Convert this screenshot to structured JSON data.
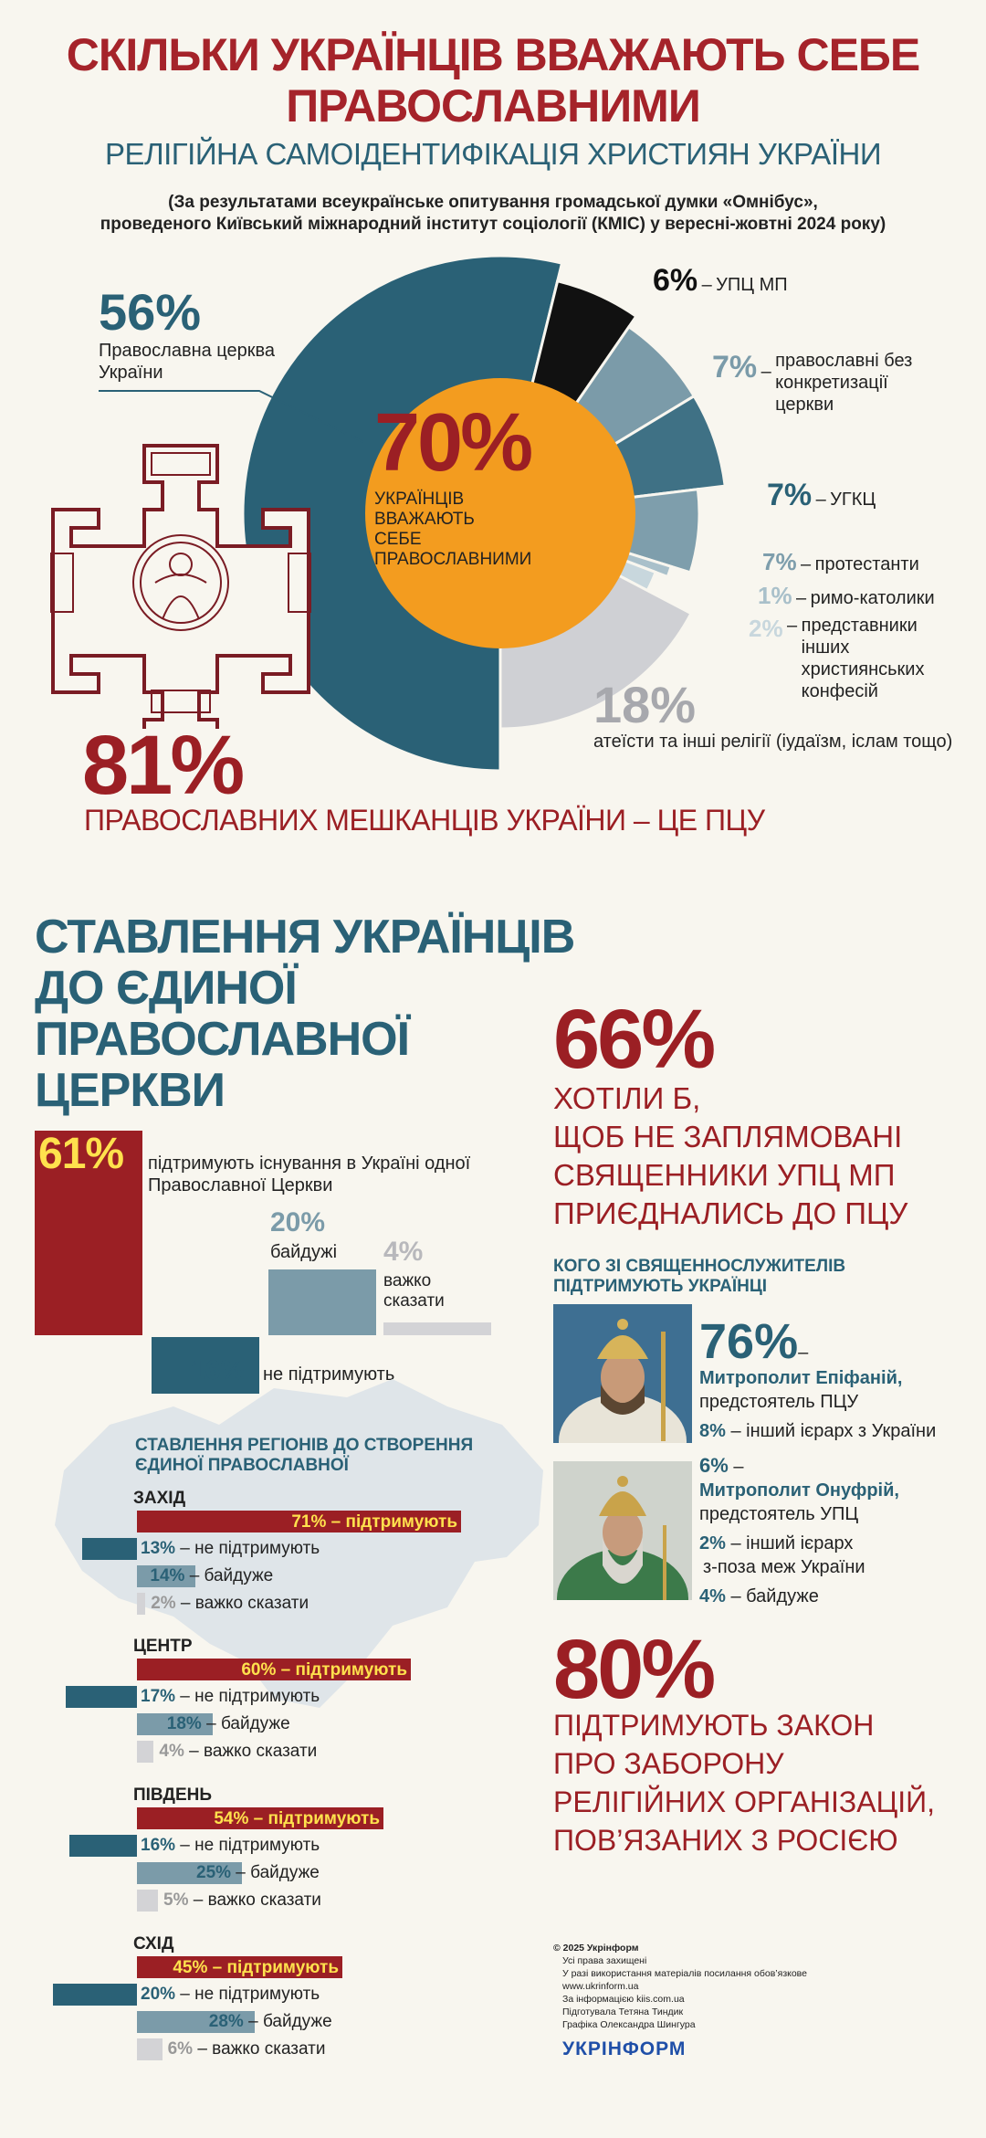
{
  "header": {
    "title_line1": "СКІЛЬКИ УКРАЇНЦІВ ВВАЖАЮТЬ СЕБЕ",
    "title_line2": "ПРАВОСЛАВНИМИ",
    "subtitle": "РЕЛІГІЙНА САМОІДЕНТИФІКАЦІЯ ХРИСТИЯН УКРАЇНИ",
    "note_line1": "(За результатами всеукраїнське опитування громадської думки «Омнібус»,",
    "note_line2": "проведеного Київський міжнародний інститут соціології (КМІС) у вересні-жовтні 2024 року)"
  },
  "colors": {
    "teal": "#2a6176",
    "red": "#9b1f24",
    "orange": "#f39c1f",
    "black": "#111111",
    "gray": "#cfd0d4"
  },
  "chart_data": [
    {
      "type": "pie",
      "center_pct": "70%",
      "center_text": "УКРАЇНЦІВ ВВАЖАЮТЬ СЕБЕ ПРАВОСЛАВНИМИ",
      "slices": [
        {
          "label": "Православна церква України",
          "value": 56,
          "pct": "56%",
          "color": "#2a6176"
        },
        {
          "label": "УПЦ МП",
          "value": 6,
          "pct": "6%",
          "color": "#111111"
        },
        {
          "label": "православні без конкретизації церкви",
          "value": 7,
          "pct": "7%",
          "color": "#7b9ba9"
        },
        {
          "label": "УГКЦ",
          "value": 7,
          "pct": "7%",
          "color": "#3f7185"
        },
        {
          "label": "протестанти",
          "value": 7,
          "pct": "7%",
          "color": "#7e9eac"
        },
        {
          "label": "римо-католики",
          "value": 1,
          "pct": "1%",
          "color": "#a9c0ca"
        },
        {
          "label": "представники інших християнських конфесій",
          "value": 2,
          "pct": "2%",
          "color": "#c8d7dd"
        },
        {
          "label": "атеїсти та інші релігії (іудаїзм, іслам тощо)",
          "value": 18,
          "pct": "18%",
          "color": "#cfd0d4"
        }
      ]
    },
    {
      "type": "bar",
      "title": "СТАВЛЕННЯ УКРАЇНЦІВ ДО ЄДИНОЇ ПРАВОСЛАВНОЇ ЦЕРКВИ",
      "bars": [
        {
          "pct": "61%",
          "value": 61,
          "label": "підтримують існування в Україні одної Православної Церкви",
          "color": "#9b1f24"
        },
        {
          "pct": "20%",
          "value": 20,
          "label": "байдужі",
          "color": "#7b9ba9"
        },
        {
          "pct": "4%",
          "value": 4,
          "label": "важко сказати",
          "color": "#d3d3d6"
        },
        {
          "pct": "16%",
          "value": 16,
          "label": "не підтримують",
          "color": "#2a6176"
        }
      ]
    },
    {
      "type": "bar",
      "title": "СТАВЛЕННЯ РЕГІОНІВ ДО СТВОРЕННЯ ЄДИНОЇ ПРАВОСЛАВНОЇ",
      "categories": [
        "ЗАХІД",
        "ЦЕНТР",
        "ПІВДЕНЬ",
        "СХІД"
      ],
      "series": [
        {
          "name": "підтримують",
          "values": [
            71,
            60,
            54,
            45
          ]
        },
        {
          "name": "не підтримують",
          "values": [
            13,
            17,
            16,
            20
          ]
        },
        {
          "name": "байдуже",
          "values": [
            14,
            18,
            25,
            28
          ]
        },
        {
          "name": "важко сказати",
          "values": [
            2,
            4,
            5,
            6
          ]
        }
      ]
    }
  ],
  "orthodox_share": {
    "pct": "81%",
    "text": "ПРАВОСЛАВНИХ МЕШКАНЦІВ УКРАЇНИ – ЦЕ ПЦУ"
  },
  "regions_labels": {
    "support": "підтримують",
    "oppose": "не підтримують",
    "indiff": "байдуже",
    "hard": "важко сказати",
    "dash": "–"
  },
  "right": {
    "p66": "66%",
    "p66_lines": [
      "ХОТІЛИ Б,",
      "ЩОБ НЕ ЗАПЛЯМОВАНІ",
      "СВЯЩЕННИКИ УПЦ МП",
      "ПРИЄДНАЛИСЬ ДО ПЦУ"
    ],
    "who_title_1": "КОГО ЗІ СВЯЩЕННОСЛУЖИТЕЛІВ",
    "who_title_2": "ПІДТРИМУЮТЬ УКРАЇНЦІ",
    "epifaniy_pct": "76%",
    "epifaniy_name": "Митрополит Епіфаній,",
    "epifaniy_role": "предстоятель ПЦУ",
    "other_ua_pct": "8%",
    "other_ua": "– інший ієрарх з України",
    "onufriy_pct": "6%",
    "onufriy_name": "Митрополит Онуфрій,",
    "onufriy_role": "предстоятель УПЦ",
    "other_abroad_pct": "2%",
    "other_abroad_1": "– інший ієрарх",
    "other_abroad_2": "з-поза меж України",
    "indiff_pct": "4%",
    "indiff": "– байдуже",
    "p80": "80%",
    "p80_lines": [
      "ПІДТРИМУЮТЬ ЗАКОН",
      "ПРО ЗАБОРОНУ",
      "РЕЛІГІЙНИХ ОРГАНІЗАЦІЙ,",
      "ПОВ’ЯЗАНИХ З РОСІЄЮ"
    ]
  },
  "footer": {
    "lines": [
      "© 2025 Укрінформ",
      "Усі права захищені",
      "У разі використання матеріалів посилання обов’язкове",
      "www.ukrinform.ua",
      "За інформацією kiis.com.ua",
      "Підготувала Тетяна Тиндик",
      "Графіка Олександра Шингура"
    ],
    "logo": "УКРІНФОРМ"
  }
}
